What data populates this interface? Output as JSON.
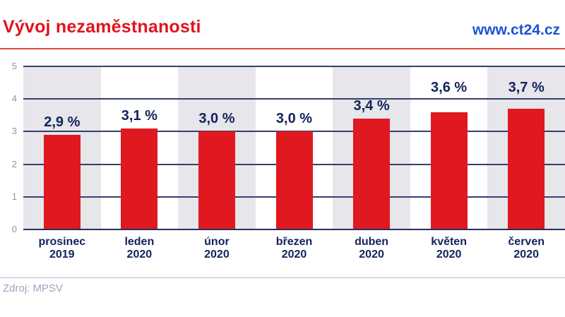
{
  "header": {
    "title": "Vývoj nezaměstnanosti",
    "site": "www.ct24.cz"
  },
  "footer": {
    "source": "Zdroj: MPSV"
  },
  "chart_data": {
    "type": "bar",
    "title": "Vývoj nezaměstnanosti",
    "categories": [
      {
        "month": "prosinec",
        "year": "2019"
      },
      {
        "month": "leden",
        "year": "2020"
      },
      {
        "month": "únor",
        "year": "2020"
      },
      {
        "month": "březen",
        "year": "2020"
      },
      {
        "month": "duben",
        "year": "2020"
      },
      {
        "month": "květen",
        "year": "2020"
      },
      {
        "month": "červen",
        "year": "2020"
      }
    ],
    "values": [
      2.9,
      3.1,
      3.0,
      3.0,
      3.4,
      3.6,
      3.7
    ],
    "value_labels": [
      "2,9 %",
      "3,1 %",
      "3,0 %",
      "3,0 %",
      "3,4 %",
      "3,6 %",
      "3,7 %"
    ],
    "unit": "%",
    "xlabel": "",
    "ylabel": "",
    "ylim": [
      0,
      5
    ],
    "yticks": [
      0,
      1,
      2,
      3,
      4,
      5
    ],
    "grid": true,
    "legend": "none",
    "bar_color": "#e01920",
    "band_color": "#e7e6ea",
    "value_label_color": "#12235b",
    "category_label_color": "#12235b",
    "grid_color": "#33406e",
    "tick_label_color": "#8f95a1",
    "alternating_column_bands": true
  }
}
